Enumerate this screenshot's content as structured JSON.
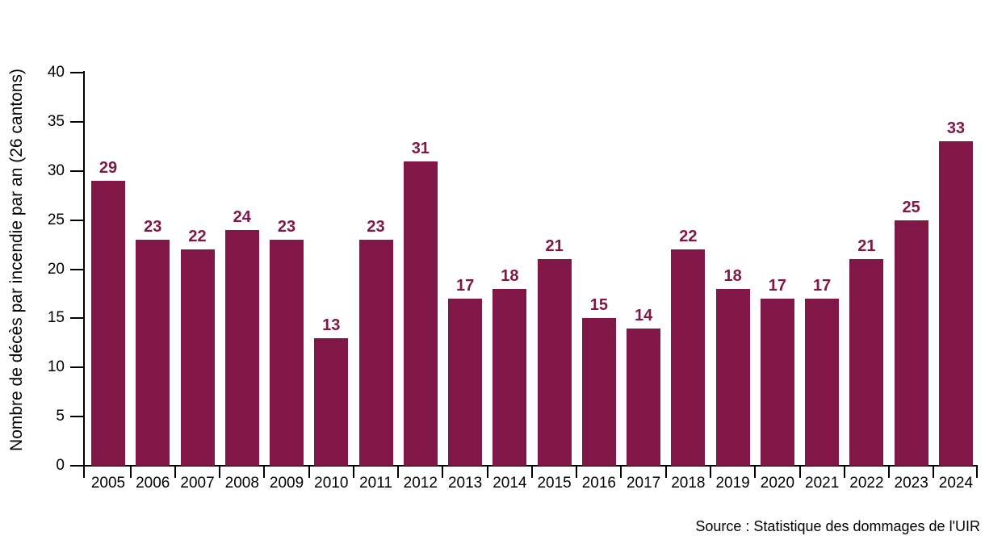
{
  "chart_data": {
    "type": "bar",
    "title": "",
    "xlabel": "",
    "ylabel": "Nombre de décès par incendie par an (26 cantons)",
    "categories": [
      "2005",
      "2006",
      "2007",
      "2008",
      "2009",
      "2010",
      "2011",
      "2012",
      "2013",
      "2014",
      "2015",
      "2016",
      "2017",
      "2018",
      "2019",
      "2020",
      "2021",
      "2022",
      "2023",
      "2024"
    ],
    "values": [
      29,
      23,
      22,
      24,
      23,
      13,
      23,
      31,
      17,
      18,
      21,
      15,
      14,
      22,
      18,
      17,
      17,
      21,
      25,
      33
    ],
    "ylim": [
      0,
      40
    ],
    "yticks": [
      0,
      5,
      10,
      15,
      20,
      25,
      30,
      35,
      40
    ],
    "grid": false,
    "legend_position": "none",
    "value_labels_shown": true,
    "colors": {
      "bar": "#801747",
      "value_label": "#801747",
      "axis": "#000000",
      "tick_label": "#000000",
      "background": "#FFFFFF"
    }
  },
  "footer": {
    "source": "Source : Statistique des dommages de l'UIR"
  }
}
